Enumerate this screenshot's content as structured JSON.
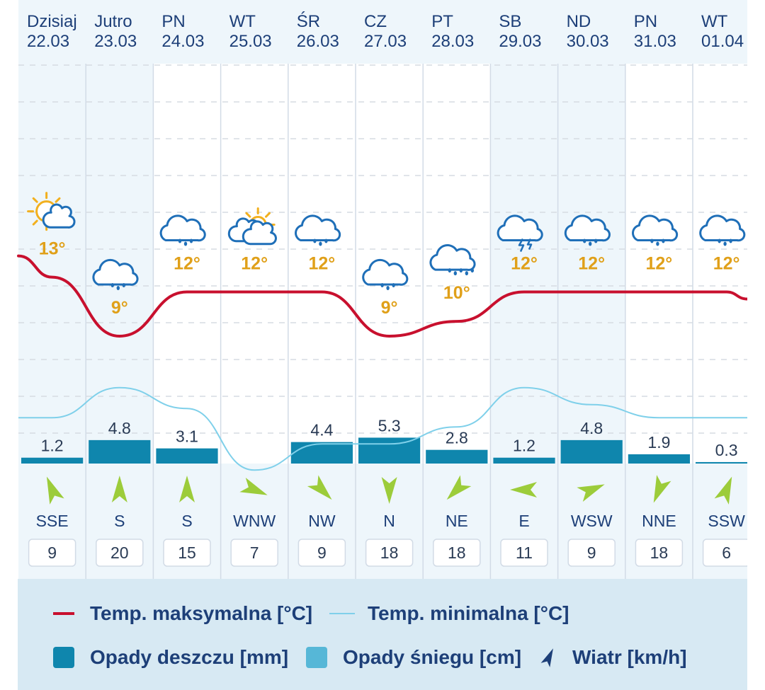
{
  "chart_data": {
    "type": "line",
    "days": [
      {
        "name": "Dzisiaj",
        "date": "22.03",
        "icon": "sun-cloud-icon",
        "temp_label": "13°",
        "tmax": 13,
        "tmin": 3.5,
        "rain": 1.2,
        "rain_label": "1.2",
        "wind_dir": "SSE",
        "wind_speed": "9"
      },
      {
        "name": "Jutro",
        "date": "23.03",
        "icon": "rain-cloud-icon",
        "temp_label": "9°",
        "tmax": 9,
        "tmin": 5.8,
        "rain": 4.8,
        "rain_label": "4.8",
        "wind_dir": "S",
        "wind_speed": "20"
      },
      {
        "name": "PN",
        "date": "24.03",
        "icon": "rain-cloud-icon",
        "temp_label": "12°",
        "tmax": 12,
        "tmin": 4.2,
        "rain": 3.1,
        "rain_label": "3.1",
        "wind_dir": "S",
        "wind_speed": "15"
      },
      {
        "name": "WT",
        "date": "25.03",
        "icon": "sun-clouds-icon",
        "temp_label": "12°",
        "tmax": 12,
        "tmin": -0.5,
        "rain": 0,
        "rain_label": "",
        "wind_dir": "WNW",
        "wind_speed": "7"
      },
      {
        "name": "ŚR",
        "date": "26.03",
        "icon": "rain-cloud-icon",
        "temp_label": "12°",
        "tmax": 12,
        "tmin": 1.5,
        "rain": 4.4,
        "rain_label": "4.4",
        "wind_dir": "NW",
        "wind_speed": "9"
      },
      {
        "name": "CZ",
        "date": "27.03",
        "icon": "rain-cloud-icon",
        "temp_label": "9°",
        "tmax": 9,
        "tmin": 1.5,
        "rain": 5.3,
        "rain_label": "5.3",
        "wind_dir": "N",
        "wind_speed": "18"
      },
      {
        "name": "PT",
        "date": "28.03",
        "icon": "heavy-rain-cloud-icon",
        "temp_label": "10°",
        "tmax": 10,
        "tmin": 2.8,
        "rain": 2.8,
        "rain_label": "2.8",
        "wind_dir": "NE",
        "wind_speed": "18"
      },
      {
        "name": "SB",
        "date": "29.03",
        "icon": "thunder-cloud-icon",
        "temp_label": "12°",
        "tmax": 12,
        "tmin": 5.8,
        "rain": 1.2,
        "rain_label": "1.2",
        "wind_dir": "E",
        "wind_speed": "11"
      },
      {
        "name": "ND",
        "date": "30.03",
        "icon": "rain-cloud-icon",
        "temp_label": "12°",
        "tmax": 12,
        "tmin": 4.5,
        "rain": 4.8,
        "rain_label": "4.8",
        "wind_dir": "WSW",
        "wind_speed": "9"
      },
      {
        "name": "PN",
        "date": "31.03",
        "icon": "rain-cloud-icon",
        "temp_label": "12°",
        "tmax": 12,
        "tmin": 3.5,
        "rain": 1.9,
        "rain_label": "1.9",
        "wind_dir": "NNE",
        "wind_speed": "18"
      },
      {
        "name": "WT",
        "date": "01.04",
        "icon": "rain-cloud-icon",
        "temp_label": "12°",
        "tmax": 12,
        "tmin": 3.5,
        "rain": 0.3,
        "rain_label": "0.3",
        "wind_dir": "SSW",
        "wind_speed": "6"
      }
    ],
    "wind_angles": {
      "SSE": 337.5,
      "S": 0,
      "WNW": 112.5,
      "NW": 135,
      "N": 180,
      "NE": 225,
      "E": 270,
      "WSW": 67.5,
      "NNE": 202.5,
      "SSW": 22.5
    },
    "legend": {
      "tmax": "Temp. maksymalna [°C]",
      "tmin": "Temp. minimalna [°C]",
      "rain": "Opady deszczu [mm]",
      "snow": "Opady śniegu [cm]",
      "wind": "Wiatr [km/h]"
    }
  },
  "colors": {
    "tmax": "#c8102e",
    "tmin": "#7fd0ea",
    "rain": "#0f86ad",
    "snow": "#56b7d7",
    "header_text": "#1d3f78",
    "temp_text": "#e0a019",
    "wind_arrow": "#9ccc3a",
    "icon_stroke": "#1f6fb8",
    "sun": "#f2b01e",
    "shade": "#eef6fb",
    "legend_bg": "#d7e9f3"
  }
}
